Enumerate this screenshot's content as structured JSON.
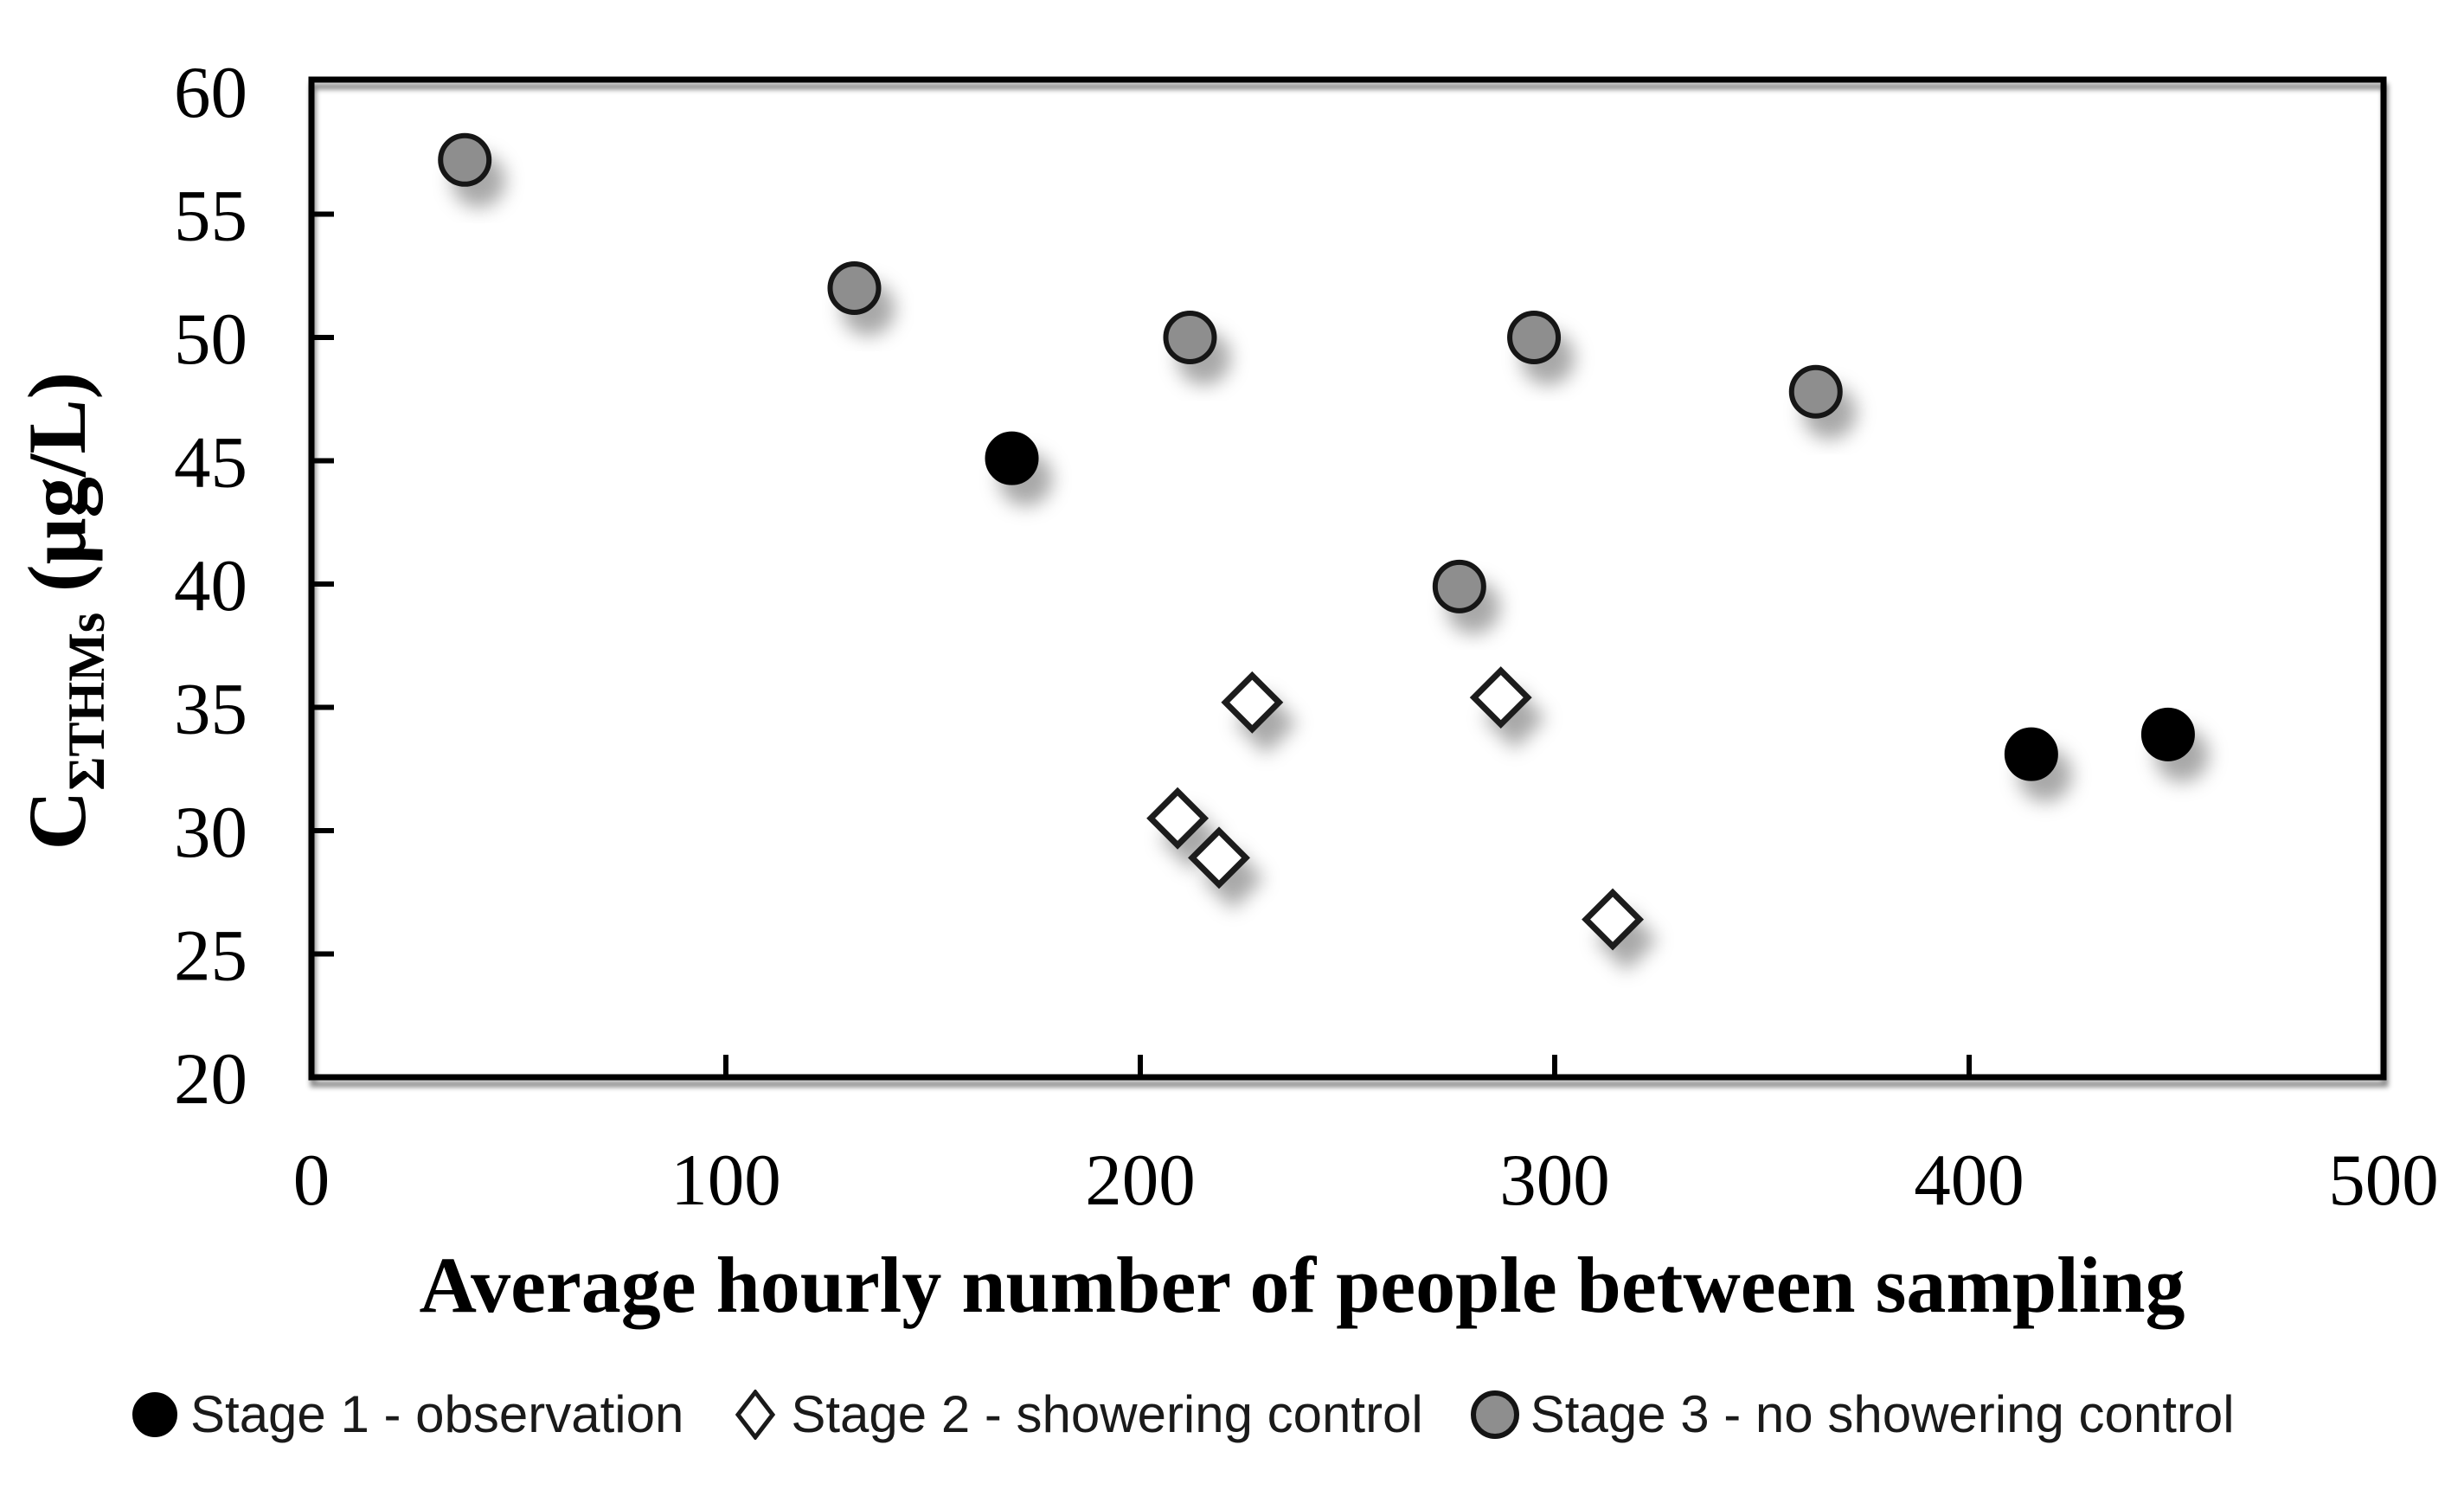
{
  "chart_data": {
    "type": "scatter",
    "title": "",
    "xlabel": "Average hourly number of people between sampling",
    "ylabel_main": "C",
    "ylabel_sub": "ΣTHMs",
    "ylabel_units": " (μg/L)",
    "xlim": [
      0,
      500
    ],
    "ylim": [
      20,
      60
    ],
    "xticks": [
      0,
      100,
      200,
      300,
      400,
      500
    ],
    "yticks": [
      20,
      25,
      30,
      35,
      40,
      45,
      50,
      55,
      60
    ],
    "grid": false,
    "legend_position": "bottom",
    "axis_color": "#000000",
    "background": "#ffffff",
    "series": [
      {
        "name": "Stage 1 - observation",
        "marker": "circle",
        "fill": "#000000",
        "stroke": "#000000",
        "points": [
          [
            169,
            45.1
          ],
          [
            415,
            33.1
          ],
          [
            448,
            33.9
          ]
        ]
      },
      {
        "name": "Stage 2 - showering control",
        "marker": "diamond",
        "fill": "#ffffff",
        "stroke": "#1a1a1a",
        "points": [
          [
            227,
            35.2
          ],
          [
            287,
            35.4
          ],
          [
            209,
            30.5
          ],
          [
            219,
            28.9
          ],
          [
            314,
            26.4
          ]
        ]
      },
      {
        "name": "Stage 3 - no showering control",
        "marker": "circle",
        "fill": "#8e8e8e",
        "stroke": "#141414",
        "points": [
          [
            37,
            57.2
          ],
          [
            131,
            52.0
          ],
          [
            212,
            50.0
          ],
          [
            295,
            50.0
          ],
          [
            277,
            39.9
          ],
          [
            363,
            47.8
          ]
        ]
      }
    ]
  }
}
